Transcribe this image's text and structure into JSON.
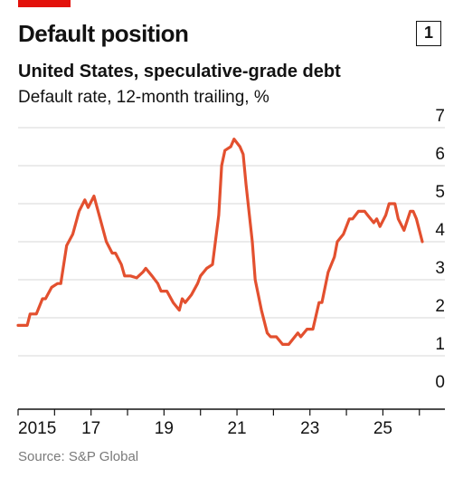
{
  "header": {
    "title": "Default position",
    "badge": "1",
    "subtitle": "United States, speculative-grade debt",
    "description": "Default rate, 12-month trailing, %"
  },
  "footer": {
    "source": "Source: S&P Global"
  },
  "colors": {
    "accent": "#e3120b",
    "line": "#e3502f",
    "grid": "#d7d7d7",
    "axis": "#121212"
  },
  "chart_data": {
    "type": "line",
    "title": "Default position",
    "subtitle": "United States, speculative-grade debt",
    "ylabel": "Default rate, 12-month trailing, %",
    "xlim": [
      2015,
      2026.7
    ],
    "ylim": [
      0,
      7
    ],
    "y_ticks": [
      "0",
      "1",
      "2",
      "3",
      "4",
      "5",
      "6",
      "7"
    ],
    "x_ticks": [
      {
        "value": 2015,
        "label": "2015"
      },
      {
        "value": 2017,
        "label": "17"
      },
      {
        "value": 2019,
        "label": "19"
      },
      {
        "value": 2021,
        "label": "21"
      },
      {
        "value": 2023,
        "label": "23"
      },
      {
        "value": 2025,
        "label": "25"
      }
    ],
    "grid": true,
    "series": [
      {
        "points": [
          [
            2015.0,
            1.8
          ],
          [
            2015.25,
            1.8
          ],
          [
            2015.33,
            2.1
          ],
          [
            2015.5,
            2.1
          ],
          [
            2015.67,
            2.5
          ],
          [
            2015.75,
            2.5
          ],
          [
            2015.92,
            2.8
          ],
          [
            2016.08,
            2.9
          ],
          [
            2016.17,
            2.9
          ],
          [
            2016.33,
            3.9
          ],
          [
            2016.5,
            4.2
          ],
          [
            2016.67,
            4.8
          ],
          [
            2016.83,
            5.1
          ],
          [
            2016.92,
            4.9
          ],
          [
            2017.08,
            5.2
          ],
          [
            2017.25,
            4.6
          ],
          [
            2017.42,
            4.0
          ],
          [
            2017.58,
            3.7
          ],
          [
            2017.67,
            3.7
          ],
          [
            2017.83,
            3.4
          ],
          [
            2017.92,
            3.1
          ],
          [
            2018.08,
            3.1
          ],
          [
            2018.25,
            3.05
          ],
          [
            2018.42,
            3.2
          ],
          [
            2018.5,
            3.3
          ],
          [
            2018.67,
            3.1
          ],
          [
            2018.83,
            2.9
          ],
          [
            2018.92,
            2.7
          ],
          [
            2019.08,
            2.7
          ],
          [
            2019.25,
            2.4
          ],
          [
            2019.42,
            2.2
          ],
          [
            2019.5,
            2.5
          ],
          [
            2019.58,
            2.4
          ],
          [
            2019.75,
            2.6
          ],
          [
            2019.92,
            2.9
          ],
          [
            2020.0,
            3.1
          ],
          [
            2020.17,
            3.3
          ],
          [
            2020.33,
            3.4
          ],
          [
            2020.5,
            4.7
          ],
          [
            2020.58,
            6.0
          ],
          [
            2020.67,
            6.4
          ],
          [
            2020.83,
            6.5
          ],
          [
            2020.92,
            6.7
          ],
          [
            2021.08,
            6.5
          ],
          [
            2021.17,
            6.3
          ],
          [
            2021.25,
            5.5
          ],
          [
            2021.42,
            4.0
          ],
          [
            2021.5,
            3.0
          ],
          [
            2021.67,
            2.2
          ],
          [
            2021.83,
            1.6
          ],
          [
            2021.92,
            1.5
          ],
          [
            2022.08,
            1.5
          ],
          [
            2022.25,
            1.3
          ],
          [
            2022.42,
            1.3
          ],
          [
            2022.5,
            1.4
          ],
          [
            2022.67,
            1.6
          ],
          [
            2022.75,
            1.5
          ],
          [
            2022.92,
            1.7
          ],
          [
            2023.08,
            1.7
          ],
          [
            2023.25,
            2.4
          ],
          [
            2023.33,
            2.4
          ],
          [
            2023.5,
            3.2
          ],
          [
            2023.67,
            3.6
          ],
          [
            2023.75,
            4.0
          ],
          [
            2023.92,
            4.2
          ],
          [
            2024.08,
            4.6
          ],
          [
            2024.17,
            4.6
          ],
          [
            2024.33,
            4.8
          ],
          [
            2024.5,
            4.8
          ],
          [
            2024.58,
            4.7
          ],
          [
            2024.75,
            4.5
          ],
          [
            2024.83,
            4.6
          ],
          [
            2024.92,
            4.4
          ],
          [
            2025.08,
            4.7
          ],
          [
            2025.17,
            5.0
          ],
          [
            2025.33,
            5.0
          ],
          [
            2025.42,
            4.6
          ],
          [
            2025.58,
            4.3
          ],
          [
            2025.75,
            4.8
          ],
          [
            2025.83,
            4.8
          ],
          [
            2025.92,
            4.6
          ],
          [
            2026.08,
            4.0
          ]
        ]
      }
    ]
  }
}
